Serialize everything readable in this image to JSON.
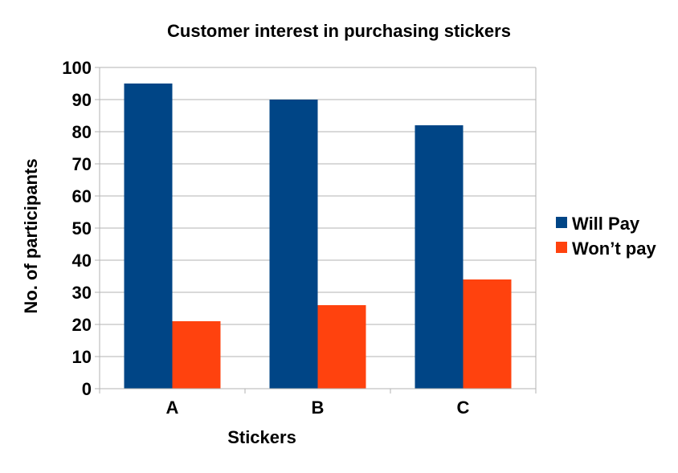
{
  "chart_data": {
    "type": "bar",
    "title": "Customer interest in purchasing stickers",
    "xlabel": "Stickers",
    "ylabel": "No. of participants",
    "categories": [
      "A",
      "B",
      "C"
    ],
    "series": [
      {
        "name": "Will Pay",
        "values": [
          95,
          90,
          82
        ],
        "color": "#004586"
      },
      {
        "name": "Won’t pay",
        "values": [
          21,
          26,
          34
        ],
        "color": "#ff420e"
      }
    ],
    "ylim": [
      0,
      100
    ],
    "yticks": [
      "0",
      "10",
      "20",
      "30",
      "40",
      "50",
      "60",
      "70",
      "80",
      "90",
      "100"
    ],
    "grid": true,
    "legend": "right"
  }
}
